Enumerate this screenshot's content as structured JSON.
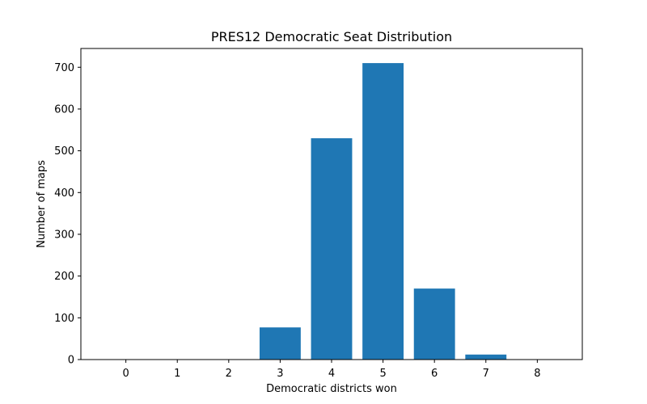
{
  "chart_data": {
    "type": "bar",
    "title": "PRES12 Democratic Seat Distribution",
    "xlabel": "Democratic districts won",
    "ylabel": "Number of maps",
    "categories": [
      "0",
      "1",
      "2",
      "3",
      "4",
      "5",
      "6",
      "7",
      "8"
    ],
    "values": [
      0,
      0,
      0,
      77,
      530,
      710,
      170,
      12,
      0
    ],
    "xlim": [
      -0.875,
      8.875
    ],
    "ylim": [
      0,
      745
    ],
    "yticks": [
      0,
      100,
      200,
      300,
      400,
      500,
      600,
      700
    ],
    "bar_color": "#1f77b4",
    "grid": false,
    "legend": "none"
  }
}
